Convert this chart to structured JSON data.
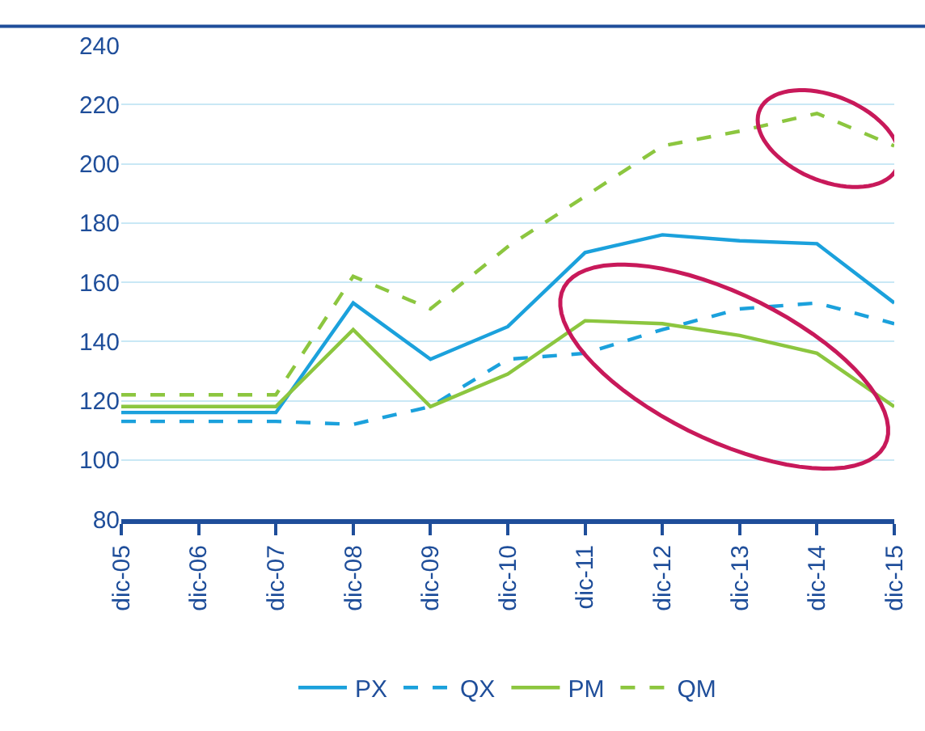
{
  "chart_data": {
    "type": "line",
    "categories": [
      "dic-05",
      "dic-06",
      "dic-07",
      "dic-08",
      "dic-09",
      "dic-10",
      "dic-11",
      "dic-12",
      "dic-13",
      "dic-14",
      "dic-15"
    ],
    "series": [
      {
        "name": "PX",
        "color": "#1ba1dc",
        "line_style": "solid",
        "values": [
          116,
          116,
          116,
          153,
          134,
          145,
          170,
          176,
          174,
          173,
          153
        ]
      },
      {
        "name": "QX",
        "color": "#1ba1dc",
        "line_style": "dashed",
        "values": [
          113,
          113,
          113,
          112,
          118,
          134,
          136,
          144,
          151,
          153,
          146
        ]
      },
      {
        "name": "PM",
        "color": "#8cc63f",
        "line_style": "solid",
        "values": [
          118,
          118,
          118,
          144,
          118,
          129,
          147,
          146,
          142,
          136,
          118
        ]
      },
      {
        "name": "QM",
        "color": "#8cc63f",
        "line_style": "dashed",
        "values": [
          122,
          122,
          122,
          162,
          151,
          172,
          189,
          206,
          211,
          217,
          206
        ]
      }
    ],
    "ylim": [
      80,
      240
    ],
    "yticks": [
      80,
      100,
      120,
      140,
      160,
      180,
      200,
      220,
      240
    ],
    "grid": "y",
    "legend": "bottom",
    "marker": "none"
  }
}
